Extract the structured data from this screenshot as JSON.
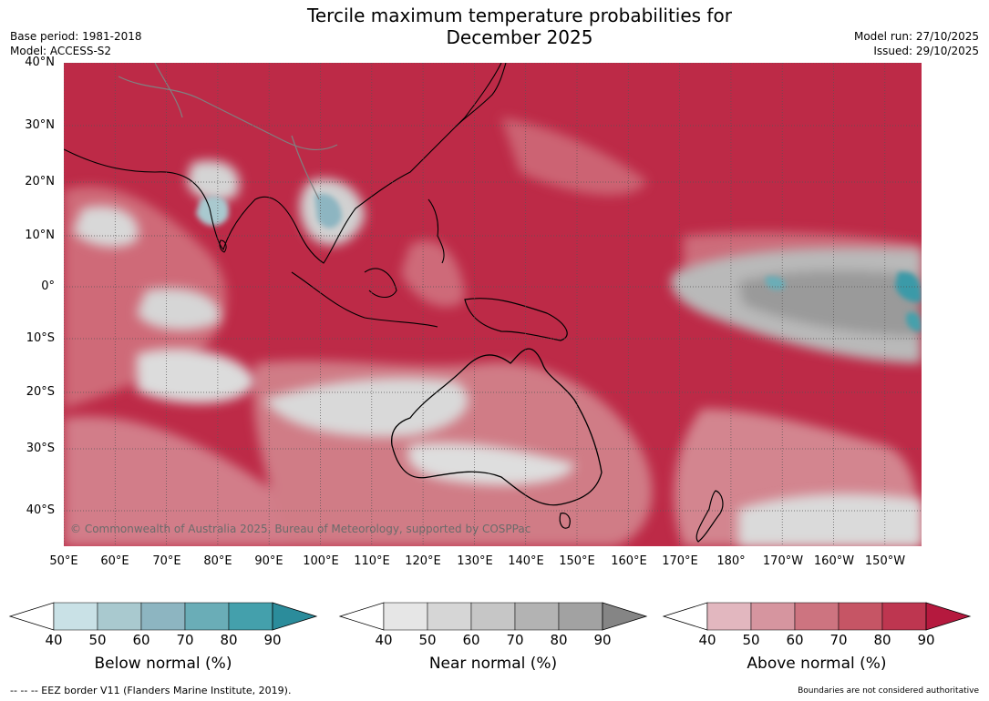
{
  "header": {
    "title_line1": "Tercile maximum temperature probabilities for",
    "title_line2": "December 2025",
    "base_period": "Base period: 1981-2018",
    "model": "Model: ACCESS-S2",
    "model_run": "Model run: 27/10/2025",
    "issued": "Issued: 29/10/2025"
  },
  "map": {
    "copyright": "© Commonwealth of Australia 2025, Bureau of Meteorology, supported by COSPPac",
    "lat_labels": [
      "40°N",
      "30°N",
      "20°N",
      "10°N",
      "0°",
      "10°S",
      "20°S",
      "30°S",
      "40°S"
    ],
    "lon_labels": [
      "50°E",
      "60°E",
      "70°E",
      "80°E",
      "90°E",
      "100°E",
      "110°E",
      "120°E",
      "130°E",
      "140°E",
      "150°E",
      "160°E",
      "170°E",
      "180°",
      "170°W",
      "160°W",
      "150°W"
    ],
    "colors": {
      "above_dominant": "#b81d3e",
      "below_dominant": "#3a9aa8",
      "near_dominant": "#8a8a8a",
      "coast": "#000000",
      "borders": "#808080"
    }
  },
  "colorbars": [
    {
      "label": "Below normal (%)",
      "ticks": [
        "40",
        "50",
        "60",
        "70",
        "80",
        "90"
      ],
      "colors": [
        "#c9e1e6",
        "#a9c9cf",
        "#8db5c1",
        "#6aadb7",
        "#44a0ac",
        "#2b8c9b"
      ]
    },
    {
      "label": "Near normal (%)",
      "ticks": [
        "40",
        "50",
        "60",
        "70",
        "80",
        "90"
      ],
      "colors": [
        "#e6e6e6",
        "#d6d6d6",
        "#c6c6c6",
        "#b3b3b3",
        "#a2a2a2",
        "#858585"
      ]
    },
    {
      "label": "Above normal (%)",
      "ticks": [
        "40",
        "50",
        "60",
        "70",
        "80",
        "90"
      ],
      "colors": [
        "#e2b7bf",
        "#d6959f",
        "#cd7480",
        "#c65565",
        "#be3650",
        "#b5193e"
      ]
    }
  ],
  "footer": {
    "eez": "--  --  -- EEZ border V11 (Flanders Marine Institute, 2019).",
    "boundaries": "Boundaries are not considered authoritative"
  }
}
